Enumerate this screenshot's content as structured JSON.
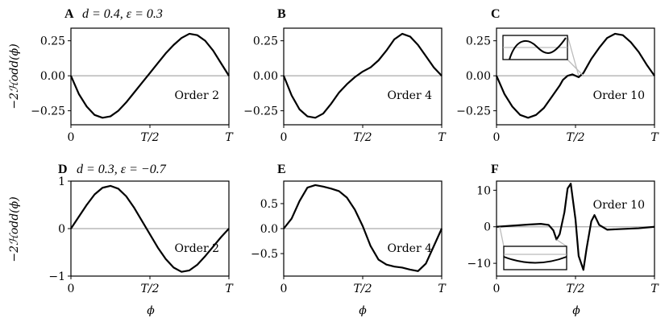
{
  "row_params": [
    {
      "prefix": "d = 0.4, ",
      "suffix": "ε = 0.3"
    },
    {
      "prefix": "d = 0.3, ",
      "suffix": "ε = −0.7"
    }
  ],
  "ylabel": "−2ℋodd(ϕ)",
  "xlabel": "ϕ",
  "chart_data": [
    {
      "type": "line",
      "letter": "A",
      "annotation": "Order 2",
      "x_ticks": [
        "0",
        "T/2",
        "T"
      ],
      "y_ticks": [
        {
          "v": 0.25,
          "label": "0.25"
        },
        {
          "v": 0,
          "label": "0.00"
        },
        {
          "v": -0.25,
          "label": "−0.25"
        }
      ],
      "ylim": [
        -0.35,
        0.34
      ],
      "zero_line": true,
      "series": [
        {
          "x": [
            0,
            0.05,
            0.1,
            0.15,
            0.2,
            0.25,
            0.3,
            0.35,
            0.4,
            0.45,
            0.5,
            0.55,
            0.6,
            0.65,
            0.7,
            0.75,
            0.8,
            0.85,
            0.9,
            0.95,
            1.0
          ],
          "y": [
            0,
            -0.13,
            -0.22,
            -0.28,
            -0.3,
            -0.29,
            -0.25,
            -0.19,
            -0.12,
            -0.05,
            0.02,
            0.09,
            0.16,
            0.22,
            0.27,
            0.3,
            0.29,
            0.25,
            0.18,
            0.09,
            0
          ]
        }
      ]
    },
    {
      "type": "line",
      "letter": "B",
      "annotation": "Order 4",
      "x_ticks": [
        "0",
        "T/2",
        "T"
      ],
      "y_ticks": [
        {
          "v": 0.25,
          "label": "0.25"
        },
        {
          "v": 0,
          "label": "0.00"
        },
        {
          "v": -0.25,
          "label": "−0.25"
        }
      ],
      "ylim": [
        -0.35,
        0.34
      ],
      "zero_line": true,
      "series": [
        {
          "x": [
            0,
            0.05,
            0.1,
            0.15,
            0.2,
            0.25,
            0.3,
            0.35,
            0.4,
            0.45,
            0.5,
            0.55,
            0.6,
            0.65,
            0.7,
            0.75,
            0.8,
            0.85,
            0.9,
            0.95,
            1.0
          ],
          "y": [
            0,
            -0.14,
            -0.24,
            -0.29,
            -0.3,
            -0.27,
            -0.2,
            -0.12,
            -0.06,
            -0.01,
            0.03,
            0.06,
            0.11,
            0.18,
            0.26,
            0.3,
            0.28,
            0.22,
            0.14,
            0.06,
            0
          ]
        }
      ]
    },
    {
      "type": "line",
      "letter": "C",
      "annotation": "Order 10",
      "x_ticks": [
        "0",
        "T/2",
        "T"
      ],
      "y_ticks": [
        {
          "v": 0.25,
          "label": "0.25"
        },
        {
          "v": 0,
          "label": "0.00"
        },
        {
          "v": -0.25,
          "label": "−0.25"
        }
      ],
      "ylim": [
        -0.35,
        0.34
      ],
      "zero_line": true,
      "series": [
        {
          "x": [
            0,
            0.05,
            0.1,
            0.15,
            0.2,
            0.25,
            0.3,
            0.35,
            0.4,
            0.42,
            0.45,
            0.48,
            0.5,
            0.52,
            0.55,
            0.58,
            0.6,
            0.65,
            0.7,
            0.75,
            0.8,
            0.85,
            0.9,
            0.95,
            1.0
          ],
          "y": [
            0,
            -0.13,
            -0.22,
            -0.28,
            -0.3,
            -0.28,
            -0.23,
            -0.15,
            -0.07,
            -0.03,
            0.0,
            0.01,
            0.0,
            -0.01,
            0.02,
            0.08,
            0.12,
            0.2,
            0.27,
            0.3,
            0.29,
            0.24,
            0.17,
            0.08,
            0
          ]
        }
      ],
      "inset": true
    },
    {
      "type": "line",
      "letter": "D",
      "annotation": "Order 2",
      "x_ticks": [
        "0",
        "T/2",
        "T"
      ],
      "y_ticks": [
        {
          "v": 1,
          "label": "1"
        },
        {
          "v": 0,
          "label": "0"
        },
        {
          "v": -1,
          "label": "−1"
        }
      ],
      "ylim": [
        -1.0,
        1.0
      ],
      "zero_line": true,
      "series": [
        {
          "x": [
            0,
            0.05,
            0.1,
            0.15,
            0.2,
            0.25,
            0.3,
            0.35,
            0.4,
            0.45,
            0.5,
            0.55,
            0.6,
            0.65,
            0.7,
            0.75,
            0.8,
            0.85,
            0.9,
            0.95,
            1.0
          ],
          "y": [
            0,
            0.25,
            0.5,
            0.72,
            0.86,
            0.9,
            0.84,
            0.68,
            0.44,
            0.16,
            -0.12,
            -0.4,
            -0.64,
            -0.82,
            -0.91,
            -0.88,
            -0.76,
            -0.58,
            -0.38,
            -0.18,
            0
          ]
        }
      ]
    },
    {
      "type": "line",
      "letter": "E",
      "annotation": "Order 4",
      "x_ticks": [
        "0",
        "T/2",
        "T"
      ],
      "y_ticks": [
        {
          "v": 0.5,
          "label": "0.5"
        },
        {
          "v": 0,
          "label": "0.0"
        },
        {
          "v": -0.5,
          "label": "−0.5"
        }
      ],
      "ylim": [
        -0.95,
        0.95
      ],
      "zero_line": true,
      "series": [
        {
          "x": [
            0,
            0.05,
            0.1,
            0.15,
            0.2,
            0.25,
            0.3,
            0.35,
            0.4,
            0.45,
            0.5,
            0.55,
            0.6,
            0.65,
            0.7,
            0.75,
            0.8,
            0.85,
            0.9,
            0.95,
            1.0
          ],
          "y": [
            0,
            0.2,
            0.55,
            0.82,
            0.87,
            0.84,
            0.8,
            0.75,
            0.62,
            0.38,
            0.05,
            -0.35,
            -0.62,
            -0.72,
            -0.76,
            -0.78,
            -0.82,
            -0.85,
            -0.7,
            -0.35,
            0
          ]
        }
      ]
    },
    {
      "type": "line",
      "letter": "F",
      "annotation": "Order 10",
      "x_ticks": [
        "0",
        "T/2",
        "T"
      ],
      "y_ticks": [
        {
          "v": 10,
          "label": "10"
        },
        {
          "v": 0,
          "label": "0"
        },
        {
          "v": -10,
          "label": "−10"
        }
      ],
      "ylim": [
        -13.5,
        12.5
      ],
      "zero_line": true,
      "series": [
        {
          "x": [
            0,
            0.1,
            0.2,
            0.28,
            0.33,
            0.36,
            0.38,
            0.4,
            0.43,
            0.45,
            0.47,
            0.5,
            0.52,
            0.55,
            0.57,
            0.6,
            0.62,
            0.65,
            0.7,
            0.8,
            0.9,
            1.0
          ],
          "y": [
            0,
            0.3,
            0.6,
            0.8,
            0.5,
            -1.0,
            -3.5,
            -2.0,
            4.0,
            10.5,
            11.8,
            2.0,
            -8.0,
            -11.8,
            -6.0,
            1.5,
            3.2,
            0.5,
            -0.8,
            -0.6,
            -0.4,
            0
          ]
        }
      ],
      "inset": true
    }
  ]
}
